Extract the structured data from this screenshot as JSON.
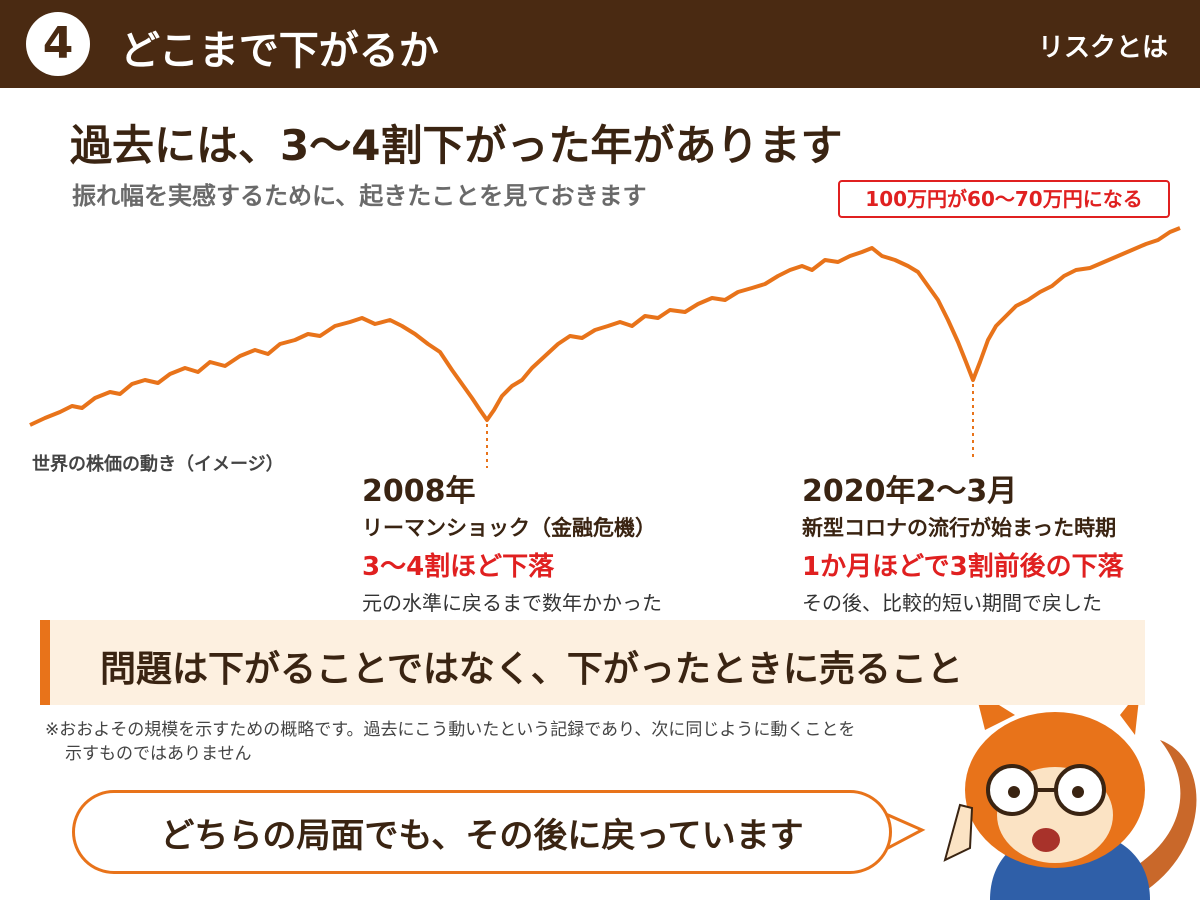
{
  "header": {
    "number": "4",
    "title": "どこまで下がるか",
    "tag": "リスクとは"
  },
  "heading": "過去には、3～4割下がった年があります",
  "subheading": "振れ幅を実感するために、起きたことを見ておきます",
  "callout": "100万円が60～70万円になる",
  "chart_caption": "世界の株価の動き（イメージ）",
  "events": [
    {
      "date": "2008年",
      "name": "リーマンショック（金融危機）",
      "drop": "3～4割ほど下落",
      "note": "元の水準に戻るまで数年かかった"
    },
    {
      "date": "2020年2～3月",
      "name": "新型コロナの流行が始まった時期",
      "drop": "1か月ほどで3割前後の下落",
      "note": "その後、比較的短い期間で戻した"
    }
  ],
  "banner": "問題は下がることではなく、下がったときに売ること",
  "footnote": [
    "※おおよその規模を示すための概略です。過去にこう動いたという記録であり、次に同じように動くことを",
    "示すものではありません"
  ],
  "bubble": "どちらの局面でも、その後に戻っています"
}
